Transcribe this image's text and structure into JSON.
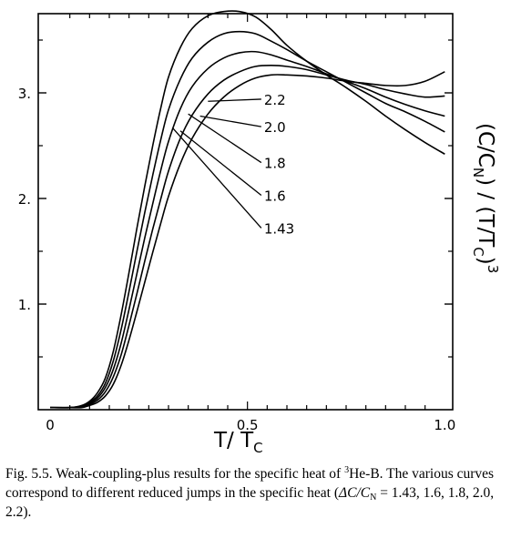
{
  "chart_data": {
    "type": "line",
    "title": "",
    "xlabel": "T / T_C",
    "xlabel_main": "T/ T",
    "xlabel_sub": "C",
    "ylabel_parts": [
      "(C/C",
      "N",
      ") / (T/T",
      "C",
      ")",
      "3"
    ],
    "xlim": [
      -0.03,
      1.02
    ],
    "ylim": [
      0,
      3.75
    ],
    "x_ticks": [
      0,
      0.5,
      1.0
    ],
    "x_tick_labels": [
      "0",
      "0.5",
      "1.0"
    ],
    "y_ticks": [
      1,
      2,
      3
    ],
    "y_tick_labels": [
      "1.",
      "2.",
      "3."
    ],
    "grid": false,
    "legend": "curve labels with leader lines",
    "series": [
      {
        "name": "2.2",
        "x": [
          0,
          0.05,
          0.08,
          0.1,
          0.12,
          0.14,
          0.16,
          0.18,
          0.2,
          0.22,
          0.24,
          0.26,
          0.28,
          0.3,
          0.33,
          0.36,
          0.4,
          0.44,
          0.48,
          0.52,
          0.56,
          0.6,
          0.65,
          0.7,
          0.75,
          0.8,
          0.85,
          0.9,
          0.95,
          1.0
        ],
        "y": [
          0.02,
          0.02,
          0.04,
          0.08,
          0.16,
          0.3,
          0.55,
          0.9,
          1.3,
          1.72,
          2.12,
          2.5,
          2.85,
          3.15,
          3.43,
          3.61,
          3.73,
          3.77,
          3.77,
          3.72,
          3.6,
          3.45,
          3.3,
          3.17,
          3.05,
          2.92,
          2.78,
          2.65,
          2.53,
          2.42
        ]
      },
      {
        "name": "2.0",
        "x": [
          0,
          0.05,
          0.08,
          0.1,
          0.12,
          0.14,
          0.16,
          0.18,
          0.2,
          0.22,
          0.24,
          0.26,
          0.28,
          0.3,
          0.33,
          0.36,
          0.4,
          0.44,
          0.48,
          0.52,
          0.56,
          0.6,
          0.65,
          0.7,
          0.75,
          0.8,
          0.85,
          0.9,
          0.95,
          1.0
        ],
        "y": [
          0.02,
          0.02,
          0.035,
          0.07,
          0.13,
          0.25,
          0.46,
          0.76,
          1.12,
          1.5,
          1.87,
          2.22,
          2.55,
          2.84,
          3.13,
          3.33,
          3.48,
          3.56,
          3.58,
          3.56,
          3.49,
          3.41,
          3.3,
          3.2,
          3.1,
          3.0,
          2.9,
          2.82,
          2.73,
          2.63
        ]
      },
      {
        "name": "1.8",
        "x": [
          0,
          0.05,
          0.08,
          0.1,
          0.12,
          0.14,
          0.16,
          0.18,
          0.2,
          0.22,
          0.24,
          0.26,
          0.28,
          0.3,
          0.33,
          0.36,
          0.4,
          0.44,
          0.48,
          0.52,
          0.56,
          0.6,
          0.65,
          0.7,
          0.75,
          0.8,
          0.85,
          0.9,
          0.95,
          1.0
        ],
        "y": [
          0.02,
          0.02,
          0.03,
          0.06,
          0.11,
          0.21,
          0.38,
          0.63,
          0.95,
          1.29,
          1.63,
          1.95,
          2.26,
          2.54,
          2.85,
          3.06,
          3.23,
          3.33,
          3.38,
          3.39,
          3.36,
          3.31,
          3.25,
          3.18,
          3.11,
          3.04,
          2.96,
          2.89,
          2.83,
          2.78
        ]
      },
      {
        "name": "1.6",
        "x": [
          0,
          0.05,
          0.08,
          0.1,
          0.12,
          0.14,
          0.16,
          0.18,
          0.2,
          0.22,
          0.24,
          0.26,
          0.28,
          0.3,
          0.33,
          0.36,
          0.4,
          0.44,
          0.48,
          0.52,
          0.56,
          0.6,
          0.65,
          0.7,
          0.75,
          0.8,
          0.85,
          0.9,
          0.95,
          1.0
        ],
        "y": [
          0.02,
          0.02,
          0.025,
          0.05,
          0.09,
          0.17,
          0.31,
          0.52,
          0.8,
          1.1,
          1.41,
          1.71,
          1.99,
          2.26,
          2.57,
          2.79,
          2.99,
          3.12,
          3.2,
          3.25,
          3.26,
          3.25,
          3.22,
          3.17,
          3.12,
          3.08,
          3.03,
          2.99,
          2.96,
          2.97
        ]
      },
      {
        "name": "1.43",
        "x": [
          0,
          0.05,
          0.08,
          0.1,
          0.12,
          0.14,
          0.16,
          0.18,
          0.2,
          0.22,
          0.24,
          0.26,
          0.28,
          0.3,
          0.33,
          0.36,
          0.4,
          0.44,
          0.48,
          0.52,
          0.56,
          0.6,
          0.65,
          0.7,
          0.75,
          0.8,
          0.85,
          0.9,
          0.95,
          1.0
        ],
        "y": [
          0.02,
          0.02,
          0.02,
          0.04,
          0.07,
          0.13,
          0.24,
          0.42,
          0.66,
          0.93,
          1.21,
          1.49,
          1.76,
          2.02,
          2.33,
          2.57,
          2.8,
          2.96,
          3.07,
          3.14,
          3.17,
          3.17,
          3.16,
          3.14,
          3.11,
          3.09,
          3.07,
          3.07,
          3.11,
          3.2
        ]
      }
    ],
    "curve_labels": [
      {
        "text": "2.2",
        "leader_from": [
          0.4,
          2.92
        ],
        "label_at": [
          0.535,
          2.94
        ]
      },
      {
        "text": "2.0",
        "leader_from": [
          0.38,
          2.78
        ],
        "label_at": [
          0.535,
          2.68
        ]
      },
      {
        "text": "1.8",
        "leader_from": [
          0.35,
          2.8
        ],
        "label_at": [
          0.535,
          2.34
        ]
      },
      {
        "text": "1.6",
        "leader_from": [
          0.33,
          2.64
        ],
        "label_at": [
          0.535,
          2.03
        ]
      },
      {
        "text": "1.43",
        "leader_from": [
          0.31,
          2.67
        ],
        "label_at": [
          0.535,
          1.72
        ]
      }
    ]
  },
  "caption": {
    "fig_prefix": "Fig. 5.5. Weak-coupling-plus results for the specific heat of ",
    "isotope_sup": "3",
    "fig_mid": "He-B. The various curves correspond to different reduced jumps in the specific heat (",
    "delta_c": "ΔC/C",
    "delta_c_sub": "N",
    "fig_end": " = 1.43, 1.6, 1.8, 2.0, 2.2)."
  }
}
